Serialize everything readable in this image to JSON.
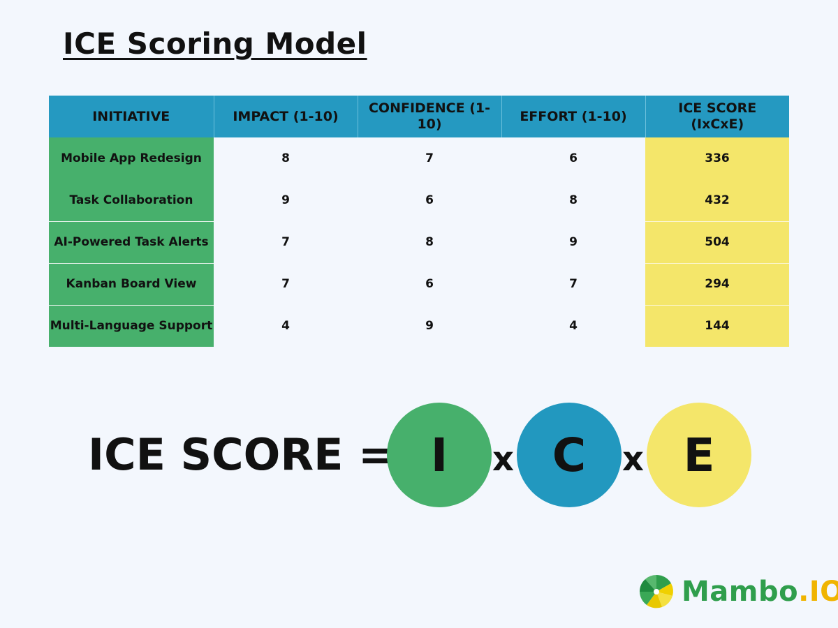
{
  "title": "ICE Scoring Model",
  "table": {
    "headers": [
      "INITIATIVE",
      "IMPACT (1-10)",
      "CONFIDENCE (1-10)",
      "EFFORT (1-10)",
      "ICE SCORE (IxCxE)"
    ],
    "rows": [
      {
        "initiative": "Mobile App Redesign",
        "impact": "8",
        "confidence": "7",
        "effort": "6",
        "score": "336"
      },
      {
        "initiative": "Task Collaboration",
        "impact": "9",
        "confidence": "6",
        "effort": "8",
        "score": "432"
      },
      {
        "initiative": "AI-Powered Task Alerts",
        "impact": "7",
        "confidence": "8",
        "effort": "9",
        "score": "504"
      },
      {
        "initiative": "Kanban Board View",
        "impact": "7",
        "confidence": "6",
        "effort": "7",
        "score": "294"
      },
      {
        "initiative": "Multi-Language Support",
        "impact": "4",
        "confidence": "9",
        "effort": "4",
        "score": "144"
      }
    ]
  },
  "formula": {
    "label": "ICE SCORE =",
    "i": "I",
    "c": "C",
    "e": "E",
    "times": "x"
  },
  "logo": {
    "name": "Mambo",
    "dot": ".",
    "suffix": "IO"
  },
  "colors": {
    "header_blue": "#2599c1",
    "initiative_green": "#47b06c",
    "score_yellow": "#f4e66a",
    "background": "#f3f7fd"
  }
}
